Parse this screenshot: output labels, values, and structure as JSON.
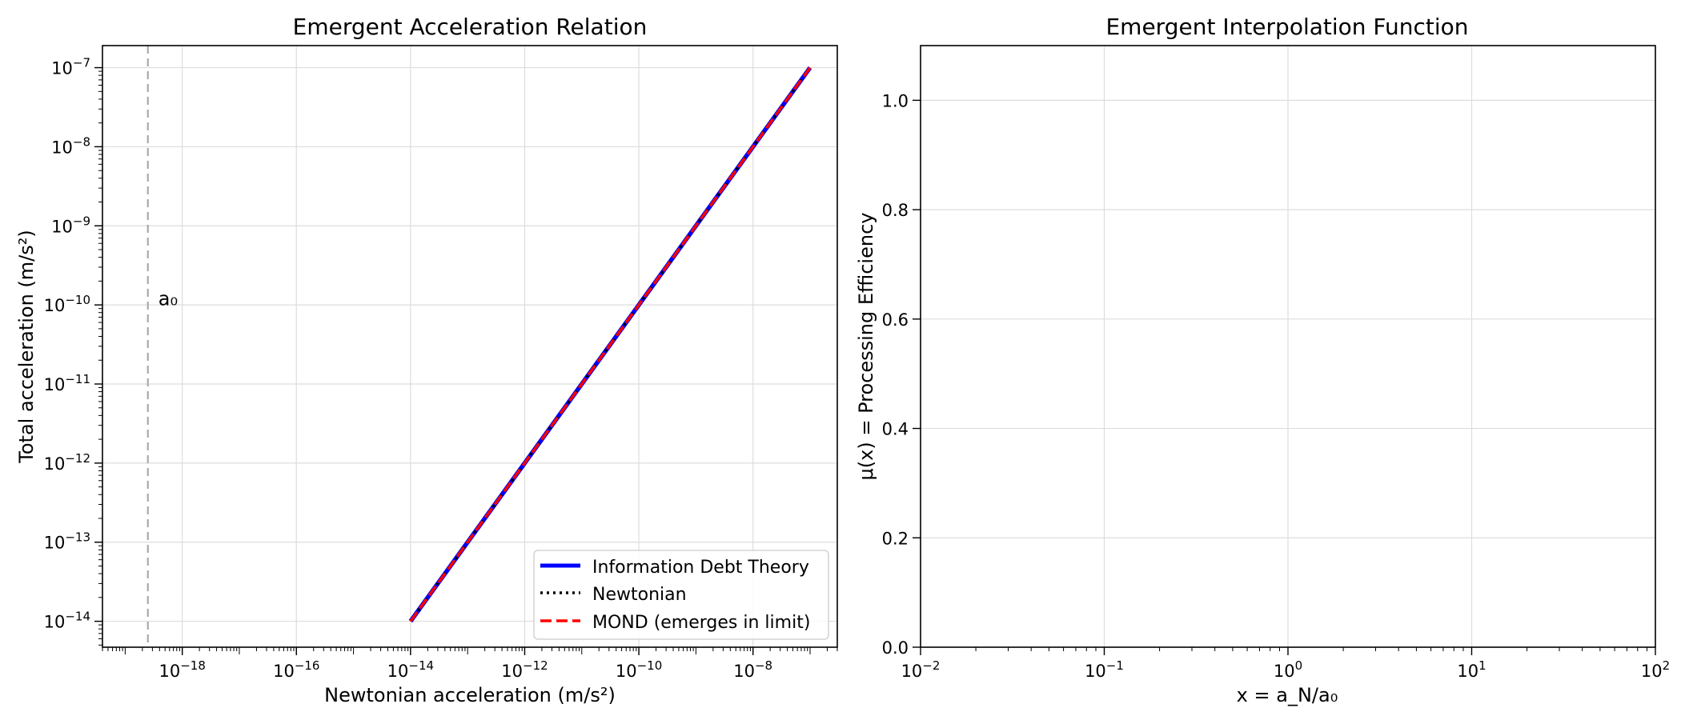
{
  "chart_data": [
    {
      "type": "line",
      "title": "Emergent Acceleration Relation",
      "xlabel": "Newtonian acceleration (m/s²)",
      "ylabel": "Total acceleration (m/s²)",
      "xscale": "log",
      "yscale": "log",
      "xlim": [
        4e-20,
        3e-07
      ],
      "ylim": [
        4.7e-15,
        1.9e-07
      ],
      "grid": true,
      "xticks": [
        {
          "value": 1e-18,
          "base": "10",
          "exp": "−18"
        },
        {
          "value": 1e-16,
          "base": "10",
          "exp": "−16"
        },
        {
          "value": 1e-14,
          "base": "10",
          "exp": "−14"
        },
        {
          "value": 1e-12,
          "base": "10",
          "exp": "−12"
        },
        {
          "value": 1e-10,
          "base": "10",
          "exp": "−10"
        },
        {
          "value": 1e-08,
          "base": "10",
          "exp": "−8"
        }
      ],
      "yticks": [
        {
          "value": 1e-14,
          "base": "10",
          "exp": "−14"
        },
        {
          "value": 1e-13,
          "base": "10",
          "exp": "−13"
        },
        {
          "value": 1e-12,
          "base": "10",
          "exp": "−12"
        },
        {
          "value": 1e-11,
          "base": "10",
          "exp": "−11"
        },
        {
          "value": 1e-10,
          "base": "10",
          "exp": "−10"
        },
        {
          "value": 1e-09,
          "base": "10",
          "exp": "−9"
        },
        {
          "value": 1e-08,
          "base": "10",
          "exp": "−8"
        },
        {
          "value": 1e-07,
          "base": "10",
          "exp": "−7"
        }
      ],
      "series": [
        {
          "name": "Information Debt Theory",
          "color": "#0000ff",
          "style": "solid",
          "x": [
            1e-14,
            1e-07
          ],
          "y": [
            1e-14,
            1e-07
          ]
        },
        {
          "name": "Newtonian",
          "color": "#000000",
          "style": "dotted",
          "x": [
            1e-14,
            1e-07
          ],
          "y": [
            1e-14,
            1e-07
          ]
        },
        {
          "name": "MOND (emerges in limit)",
          "color": "#ff0000",
          "style": "dashed",
          "x": [
            1e-14,
            1e-07
          ],
          "y": [
            1e-14,
            1e-07
          ]
        }
      ],
      "vline": {
        "x": 2.5e-19,
        "label": "a₀",
        "label_y": 1.2e-10,
        "color": "#aaaaaa"
      },
      "legend_position": "lower-right"
    },
    {
      "type": "line",
      "title": "Emergent Interpolation Function",
      "xlabel": "x = a_N/a₀",
      "ylabel": "μ(x) = Processing Efficiency",
      "xscale": "log",
      "xlim": [
        0.01,
        100
      ],
      "ylim": [
        0,
        1.1
      ],
      "grid": true,
      "xticks": [
        {
          "value": 0.01,
          "base": "10",
          "exp": "−2"
        },
        {
          "value": 0.1,
          "base": "10",
          "exp": "−1"
        },
        {
          "value": 1,
          "base": "10",
          "exp": "0"
        },
        {
          "value": 10,
          "base": "10",
          "exp": "1"
        },
        {
          "value": 100,
          "base": "10",
          "exp": "2"
        }
      ],
      "yticks": [
        "0.0",
        "0.2",
        "0.4",
        "0.6",
        "0.8",
        "1.0"
      ],
      "series": []
    }
  ]
}
